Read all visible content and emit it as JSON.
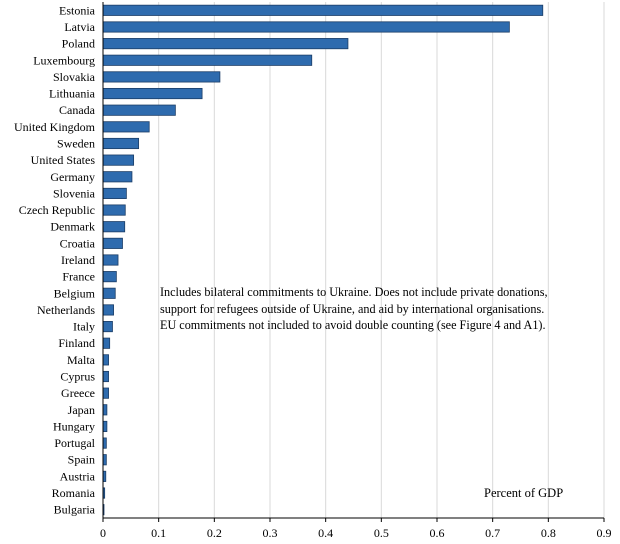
{
  "chart_data": {
    "type": "bar",
    "orientation": "horizontal",
    "categories": [
      "Estonia",
      "Latvia",
      "Poland",
      "Luxembourg",
      "Slovakia",
      "Lithuania",
      "Canada",
      "United Kingdom",
      "Sweden",
      "United States",
      "Germany",
      "Slovenia",
      "Czech Republic",
      "Denmark",
      "Croatia",
      "Ireland",
      "France",
      "Belgium",
      "Netherlands",
      "Italy",
      "Finland",
      "Malta",
      "Cyprus",
      "Greece",
      "Japan",
      "Hungary",
      "Portugal",
      "Spain",
      "Austria",
      "Romania",
      "Bulgaria"
    ],
    "values": [
      0.79,
      0.73,
      0.44,
      0.375,
      0.21,
      0.178,
      0.13,
      0.083,
      0.064,
      0.055,
      0.052,
      0.042,
      0.04,
      0.039,
      0.035,
      0.027,
      0.024,
      0.022,
      0.019,
      0.017,
      0.012,
      0.01,
      0.01,
      0.01,
      0.007,
      0.007,
      0.006,
      0.006,
      0.005,
      0.003,
      0.001
    ],
    "xlim": [
      0,
      0.9
    ],
    "xticks": [
      0,
      0.1,
      0.2,
      0.3,
      0.4,
      0.5,
      0.6,
      0.7,
      0.8,
      0.9
    ],
    "xtick_labels": [
      "0",
      "0.1",
      "0.2",
      "0.3",
      "0.4",
      "0.5",
      "0.6",
      "0.7",
      "0.8",
      "0.9"
    ],
    "xlabel": "Percent of GDP",
    "grid": "vertical",
    "bar_color": "#2E6BAE",
    "bar_edge_color": "#1b3d66"
  },
  "annotation": {
    "lines": [
      "Includes bilateral  commitments to Ukraine.  Does not include private donations,",
      "support for refugees outside of Ukraine, and aid by international  organisations.",
      "EU commitments not included to avoid double counting (see Figure 4 and A1)."
    ]
  },
  "unit_label": "Percent of GDP"
}
